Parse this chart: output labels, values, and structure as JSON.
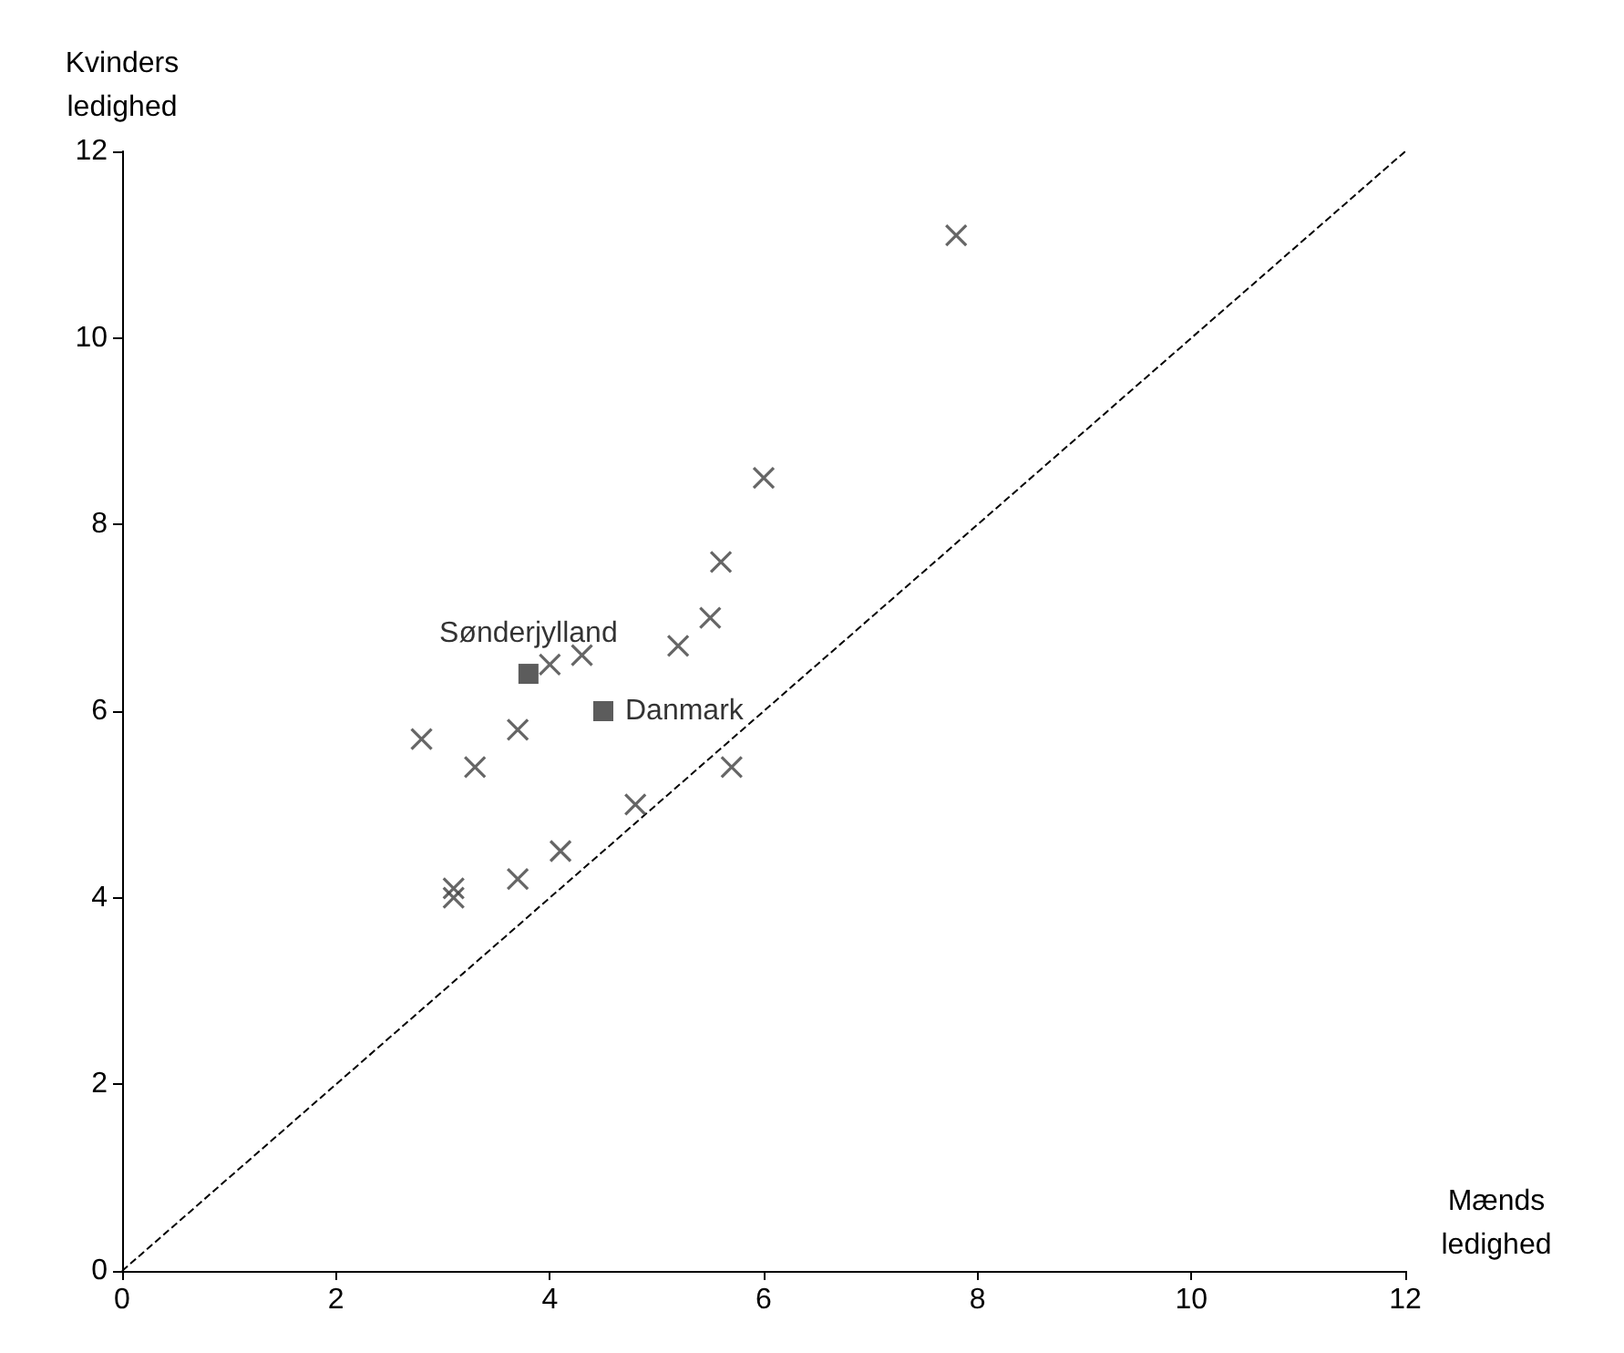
{
  "chart_data": {
    "type": "scatter",
    "xlabel": "Mænds ledighed",
    "ylabel": "Kvinders ledighed",
    "xlim": [
      0,
      12
    ],
    "ylim": [
      0,
      12
    ],
    "xticks": [
      0,
      2,
      4,
      6,
      8,
      10,
      12
    ],
    "yticks": [
      0,
      2,
      4,
      6,
      8,
      10,
      12
    ],
    "grid": false,
    "series": [
      {
        "marker": "cross",
        "color": "#404040",
        "x": [
          7.8,
          6.0,
          5.6,
          5.5,
          5.2,
          4.3,
          4.0,
          3.7,
          2.8,
          3.3,
          5.7,
          4.8,
          4.1,
          3.7,
          3.1,
          3.1
        ],
        "values": [
          11.1,
          8.5,
          7.6,
          7.0,
          6.7,
          6.6,
          6.5,
          5.8,
          5.7,
          5.4,
          5.4,
          5.0,
          4.5,
          4.2,
          4.1,
          4.0
        ]
      },
      {
        "marker": "square",
        "color": "#333333",
        "x": [
          3.8,
          4.5
        ],
        "values": [
          6.4,
          6.0
        ]
      },
      {
        "type": "line",
        "marker": "none",
        "line_style": "dashed",
        "color": "#000000",
        "x": [
          0,
          12
        ],
        "values": [
          0,
          12
        ]
      }
    ],
    "annotations": [
      {
        "text": "Sønderjylland",
        "x": 3.8,
        "y": 6.4
      },
      {
        "text": "Danmark",
        "x": 4.5,
        "y": 6.0
      }
    ]
  }
}
